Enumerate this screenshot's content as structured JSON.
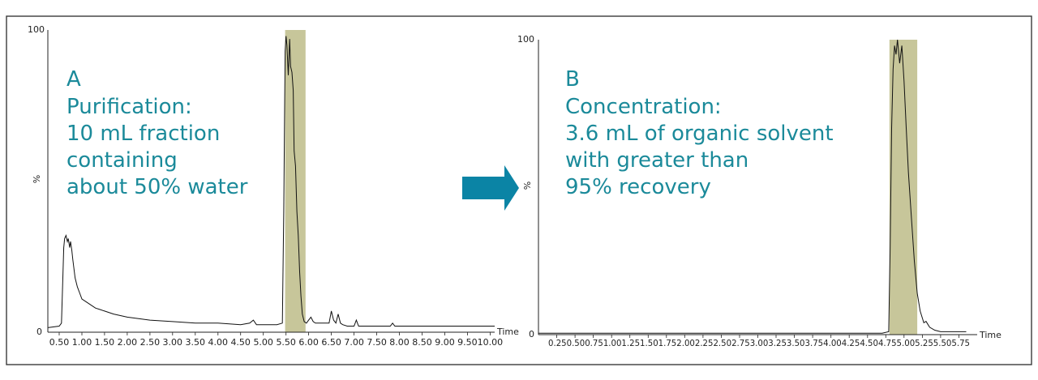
{
  "colors": {
    "highlight": "#c7c69a",
    "annotation_text": "#1b8a9a",
    "arrow": "#0b84a5",
    "trace": "#111111"
  },
  "arrow_icon": "right-arrow-icon",
  "chart_data": [
    {
      "id": "A",
      "type": "line",
      "ylabel": "%",
      "xlabel": "Time",
      "y_ticks": [
        "0",
        "100"
      ],
      "ylim": [
        0,
        100
      ],
      "xlim": [
        0.25,
        10.1
      ],
      "x_ticks": [
        "0.50",
        "1.00",
        "1.50",
        "2.00",
        "2.50",
        "3.00",
        "3.50",
        "4.00",
        "4.50",
        "5.00",
        "5.50",
        "6.00",
        "6.50",
        "7.00",
        "7.50",
        "8.00",
        "8.50",
        "9.00",
        "9.50",
        "10.00"
      ],
      "highlight": [
        5.48,
        5.93
      ],
      "annotation": [
        "A",
        "Purification:",
        "10 mL fraction",
        "containing",
        "about 50% water"
      ],
      "series": [
        {
          "x": [
            0.25,
            0.5,
            0.55,
            0.58,
            0.6,
            0.62,
            0.65,
            0.68,
            0.7,
            0.73,
            0.75,
            0.78,
            0.8,
            0.85,
            0.9,
            0.95,
            1.0,
            1.1,
            1.2,
            1.3,
            1.4,
            1.5,
            1.7,
            2.0,
            2.5,
            3.0,
            3.5,
            4.0,
            4.5,
            4.7,
            4.78,
            4.85,
            5.0,
            5.3,
            5.42,
            5.45,
            5.48,
            5.5,
            5.52,
            5.55,
            5.58,
            5.6,
            5.63,
            5.66,
            5.68,
            5.71,
            5.74,
            5.77,
            5.8,
            5.83,
            5.86,
            5.9,
            5.95,
            6.0,
            6.05,
            6.1,
            6.15,
            6.2,
            6.3,
            6.4,
            6.45,
            6.5,
            6.55,
            6.6,
            6.65,
            6.7,
            6.75,
            6.85,
            7.0,
            7.05,
            7.1,
            7.2,
            7.5,
            7.8,
            7.85,
            7.9,
            8.0,
            8.3,
            9.0,
            10.1
          ],
          "y": [
            1.5,
            2,
            3,
            18,
            28,
            31,
            32,
            30,
            31,
            28,
            30,
            27,
            24,
            18,
            15,
            13,
            11,
            10,
            9,
            8,
            7.5,
            7,
            6,
            5,
            4,
            3.5,
            3,
            3,
            2.5,
            3,
            4,
            2.5,
            2.5,
            2.5,
            3,
            40,
            93,
            98,
            95,
            85,
            97,
            88,
            86,
            80,
            60,
            55,
            40,
            32,
            20,
            12,
            6,
            3.5,
            3,
            4,
            5,
            3.5,
            3,
            3,
            3,
            3,
            3,
            7,
            4,
            3,
            6,
            3,
            2.5,
            2,
            2,
            4,
            2,
            2,
            2,
            2,
            3,
            2,
            2,
            2,
            2,
            2
          ]
        }
      ]
    },
    {
      "id": "B",
      "type": "line",
      "ylabel": "%",
      "xlabel": "Time",
      "y_ticks": [
        "0",
        "100"
      ],
      "ylim": [
        0,
        100
      ],
      "xlim": [
        0.0,
        6.0
      ],
      "x_tick_text": "0.250.500.751.001.251.501.752.002.252.502.753.003.253.503.754.004.254.504.755.005.255.505.75",
      "highlight": [
        4.8,
        5.18
      ],
      "annotation": [
        "B",
        "Concentration:",
        "3.6 mL of organic solvent",
        "with greater than",
        "95% recovery"
      ],
      "series": [
        {
          "x": [
            0.0,
            1.0,
            2.0,
            3.0,
            4.0,
            4.7,
            4.79,
            4.81,
            4.83,
            4.85,
            4.87,
            4.89,
            4.91,
            4.94,
            4.97,
            5.0,
            5.03,
            5.06,
            5.1,
            5.14,
            5.18,
            5.22,
            5.27,
            5.3,
            5.35,
            5.42,
            5.5,
            5.7,
            5.85
          ],
          "y": [
            0.5,
            0.5,
            0.5,
            0.5,
            0.5,
            0.5,
            1,
            30,
            70,
            90,
            98,
            95,
            100,
            92,
            98,
            86,
            70,
            55,
            40,
            25,
            14,
            8,
            4,
            4.5,
            2.5,
            1.5,
            1,
            1,
            1
          ]
        }
      ]
    }
  ]
}
